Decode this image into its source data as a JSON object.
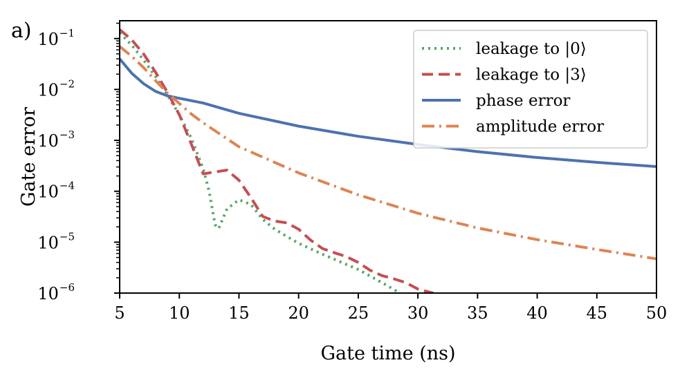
{
  "chart_data": {
    "type": "line",
    "panel_label": "a)",
    "xlabel": "Gate time (ns)",
    "ylabel": "Gate error",
    "xlim": [
      5,
      50
    ],
    "ylim_log10": [
      -6,
      -0.65
    ],
    "y_scale": "log",
    "x_ticks": [
      5,
      10,
      15,
      20,
      25,
      30,
      35,
      40,
      45,
      50
    ],
    "y_ticks": [
      {
        "exponent": -1,
        "base": "10",
        "sup": "−1"
      },
      {
        "exponent": -2,
        "base": "10",
        "sup": "−2"
      },
      {
        "exponent": -3,
        "base": "10",
        "sup": "−3"
      },
      {
        "exponent": -4,
        "base": "10",
        "sup": "−4"
      },
      {
        "exponent": -5,
        "base": "10",
        "sup": "−5"
      },
      {
        "exponent": -6,
        "base": "10",
        "sup": "−6"
      }
    ],
    "legend_position": "top-right",
    "series": [
      {
        "name": "leakage to |0⟩",
        "legend_base": "leakage to ",
        "legend_ket": "|0⟩",
        "color": "#55a868",
        "style": "dotted",
        "points": [
          [
            5,
            0.13
          ],
          [
            6,
            0.075
          ],
          [
            7,
            0.038
          ],
          [
            8,
            0.018
          ],
          [
            9,
            0.0078
          ],
          [
            10,
            0.0032
          ],
          [
            11,
            0.0011
          ],
          [
            12,
            0.00028
          ],
          [
            12.5,
            0.0001
          ],
          [
            13,
            2.2e-05
          ],
          [
            13.3,
            1.85e-05
          ],
          [
            14,
            4.5e-05
          ],
          [
            15,
            6.8e-05
          ],
          [
            16,
            5.5e-05
          ],
          [
            17,
            2.8e-05
          ],
          [
            18,
            1.8e-05
          ],
          [
            19,
            1.3e-05
          ],
          [
            20,
            9.5e-06
          ],
          [
            22,
            5.8e-06
          ],
          [
            25,
            2.9e-06
          ],
          [
            27,
            1.6e-06
          ],
          [
            28.5,
            1e-06
          ]
        ]
      },
      {
        "name": "leakage to |3⟩",
        "legend_base": "leakage to ",
        "legend_ket": "|3⟩",
        "color": "#c44e52",
        "style": "dashed",
        "points": [
          [
            5,
            0.15
          ],
          [
            6,
            0.095
          ],
          [
            7,
            0.05
          ],
          [
            8,
            0.022
          ],
          [
            9,
            0.0088
          ],
          [
            10,
            0.0032
          ],
          [
            11,
            0.00085
          ],
          [
            12,
            0.00022
          ],
          [
            13,
            0.00024
          ],
          [
            14,
            0.00026
          ],
          [
            15,
            0.000165
          ],
          [
            16,
            7.5e-05
          ],
          [
            17,
            3.2e-05
          ],
          [
            18,
            2.6e-05
          ],
          [
            19,
            2.4e-05
          ],
          [
            20,
            1.8e-05
          ],
          [
            21,
            1.1e-05
          ],
          [
            22,
            7.5e-06
          ],
          [
            23,
            6.2e-06
          ],
          [
            24,
            5.2e-06
          ],
          [
            25,
            4e-06
          ],
          [
            26,
            2.8e-06
          ],
          [
            27,
            2.2e-06
          ],
          [
            28,
            1.9e-06
          ],
          [
            29,
            1.6e-06
          ],
          [
            30,
            1.2e-06
          ],
          [
            31.3,
            1e-06
          ]
        ]
      },
      {
        "name": "phase error",
        "legend_base": "phase error",
        "legend_ket": "",
        "color": "#4c72b0",
        "style": "solid",
        "points": [
          [
            5,
            0.04
          ],
          [
            6,
            0.021
          ],
          [
            7,
            0.013
          ],
          [
            8,
            0.0092
          ],
          [
            9,
            0.0075
          ],
          [
            10,
            0.0067
          ],
          [
            12,
            0.0054
          ],
          [
            15,
            0.0034
          ],
          [
            20,
            0.0019
          ],
          [
            25,
            0.0012
          ],
          [
            30,
            0.00083
          ],
          [
            35,
            0.0006
          ],
          [
            40,
            0.00046
          ],
          [
            45,
            0.00037
          ],
          [
            50,
            0.000305
          ]
        ]
      },
      {
        "name": "amplitude error",
        "legend_base": "amplitude error",
        "legend_ket": "",
        "color": "#dd8452",
        "style": "dashdot",
        "points": [
          [
            5,
            0.07
          ],
          [
            6,
            0.045
          ],
          [
            7,
            0.027
          ],
          [
            8,
            0.015
          ],
          [
            9,
            0.0085
          ],
          [
            10,
            0.0053
          ],
          [
            11,
            0.0033
          ],
          [
            12,
            0.0022
          ],
          [
            15,
            0.00075
          ],
          [
            20,
            0.00023
          ],
          [
            25,
            8.5e-05
          ],
          [
            30,
            3.7e-05
          ],
          [
            35,
            1.9e-05
          ],
          [
            40,
            1.12e-05
          ],
          [
            45,
            7.2e-06
          ],
          [
            50,
            4.7e-06
          ]
        ]
      }
    ]
  }
}
